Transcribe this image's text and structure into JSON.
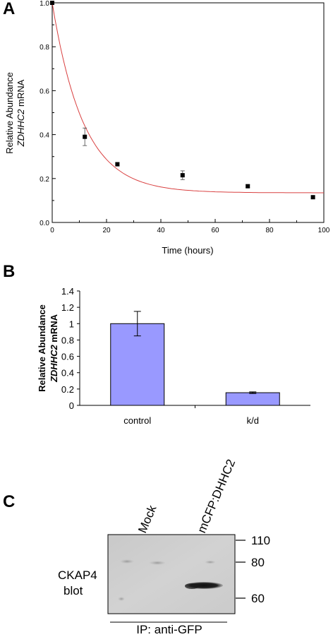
{
  "panels": {
    "a": "A",
    "b": "B",
    "c": "C"
  },
  "chart_data": [
    {
      "type": "scatter",
      "panel": "A",
      "xlabel": "Time (hours)",
      "ylabel_line1": "Relative Abundance",
      "ylabel_line2_italic": "ZDHHC2",
      "ylabel_line2_rest": " mRNA",
      "xlim": [
        0,
        100
      ],
      "ylim": [
        0.0,
        1.0
      ],
      "xticks": [
        "0",
        "20",
        "40",
        "60",
        "80",
        "100"
      ],
      "yticks": [
        "0.0",
        "0.2",
        "0.4",
        "0.6",
        "0.8",
        "1.0"
      ],
      "points": [
        {
          "x": 0,
          "y": 1.0,
          "err": 0.0
        },
        {
          "x": 12,
          "y": 0.39,
          "err": 0.04
        },
        {
          "x": 24,
          "y": 0.265,
          "err": 0.008
        },
        {
          "x": 48,
          "y": 0.215,
          "err": 0.02
        },
        {
          "x": 72,
          "y": 0.165,
          "err": 0.006
        },
        {
          "x": 96,
          "y": 0.115,
          "err": 0.005
        }
      ],
      "fit": {
        "type": "exponential-decay",
        "y0": 0.135,
        "a": 0.865,
        "tau": 11.5,
        "color": "#d94040"
      },
      "marker_color": "#000000"
    },
    {
      "type": "bar",
      "panel": "B",
      "categories": [
        "control",
        "k/d"
      ],
      "values": [
        1.0,
        0.155
      ],
      "errors": [
        0.15,
        0.01
      ],
      "ylabel_line1": "Relative Abundance",
      "ylabel_line2_italic": "ZDHHC2",
      "ylabel_line2_rest": " mRNA",
      "ylim": [
        0,
        1.4
      ],
      "yticks": [
        "0",
        "0.2",
        "0.4",
        "0.6",
        "0.8",
        "1",
        "1.2",
        "1.4"
      ],
      "bar_color": "#9999ff"
    }
  ],
  "blot": {
    "lanes": [
      "Mock",
      "mCFP:DHHC2"
    ],
    "markers": [
      {
        "label": "110",
        "kda": 110
      },
      {
        "label": "80",
        "kda": 80
      },
      {
        "label": "60",
        "kda": 60
      }
    ],
    "blot_label_line1": "CKAP4",
    "blot_label_line2": "blot",
    "ip_label": "IP: anti-GFP"
  }
}
